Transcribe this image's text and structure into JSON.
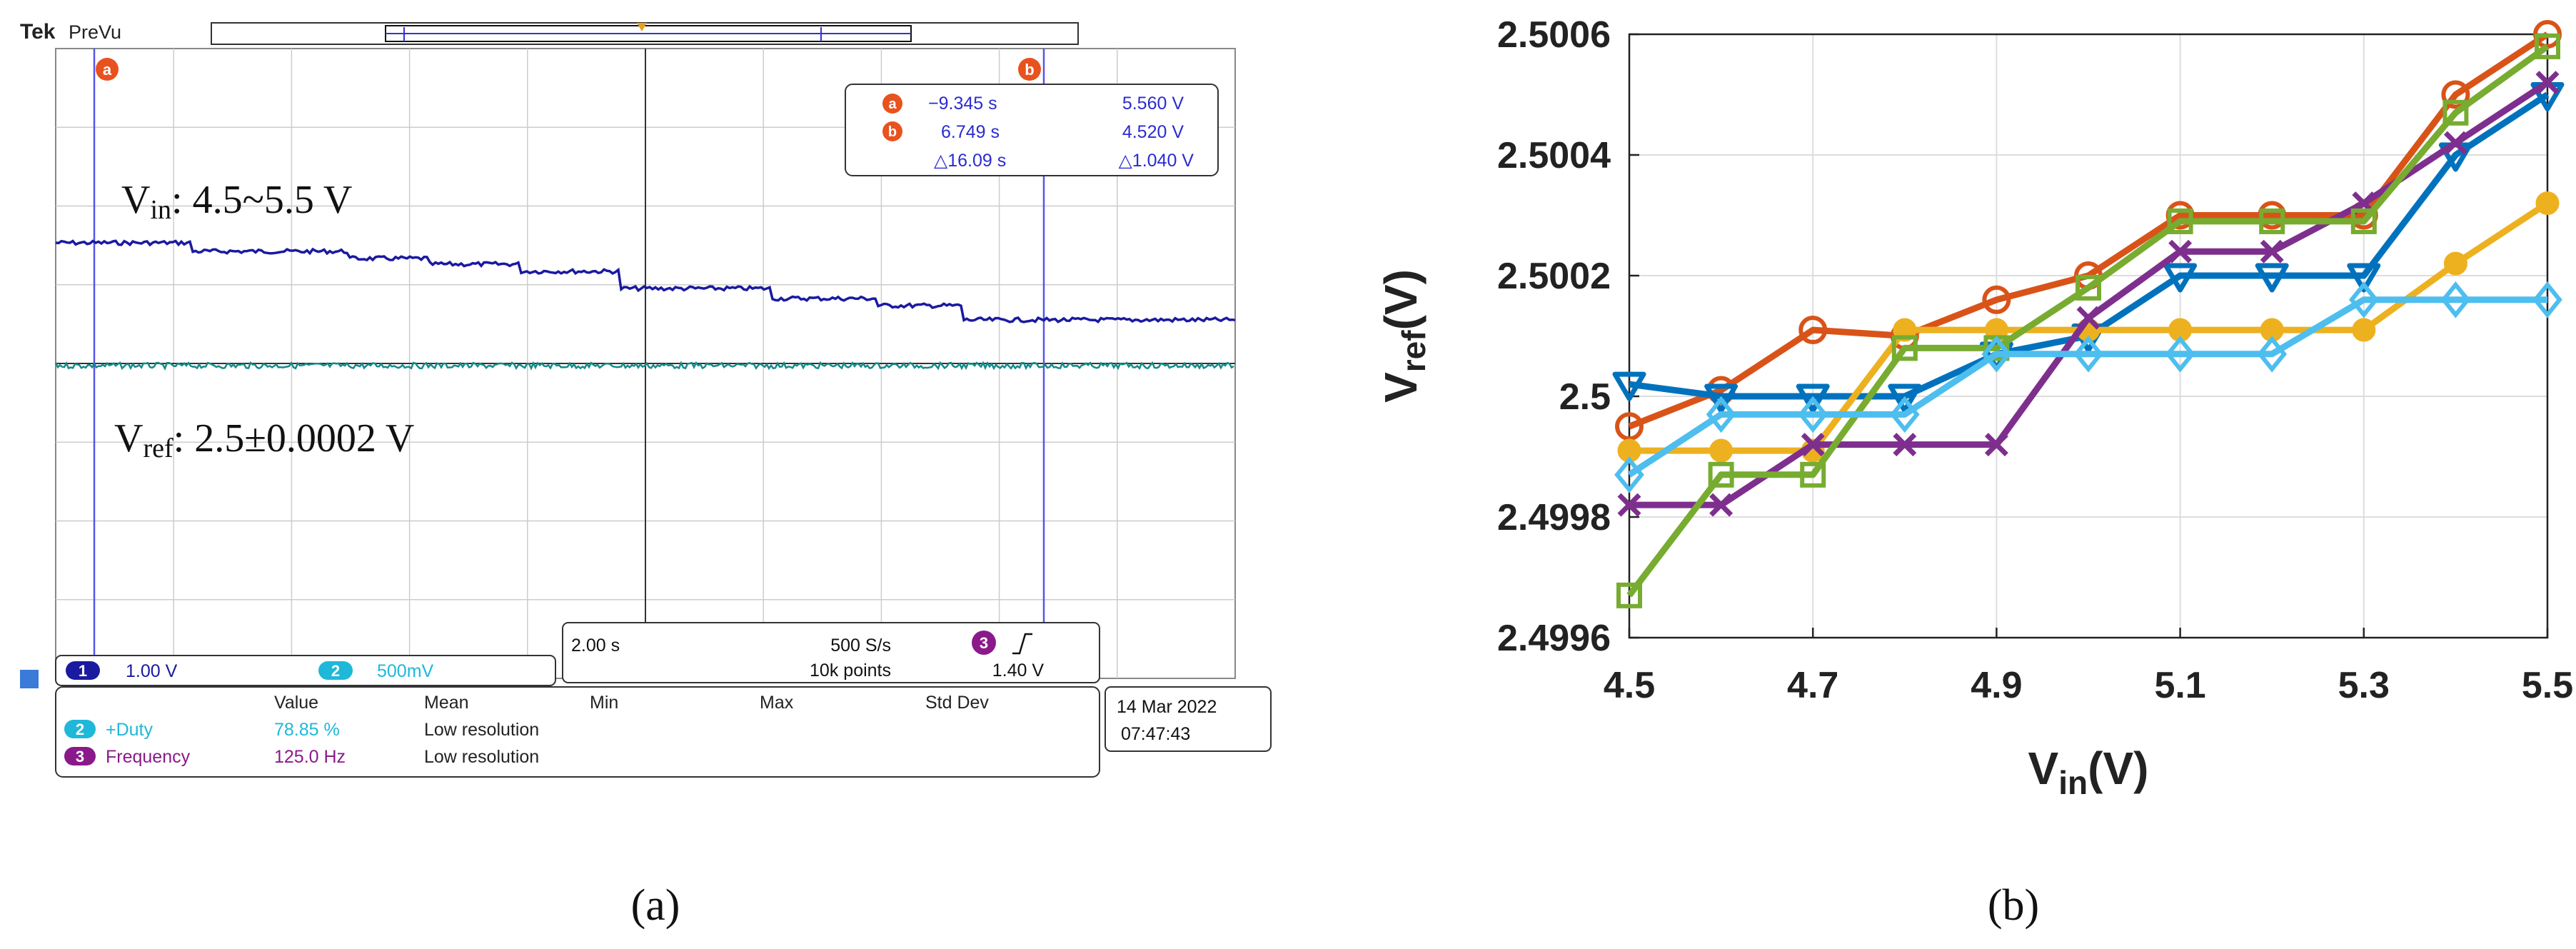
{
  "panel_a": {
    "brand": "Tek",
    "mode": "PreVu",
    "cursor_a_label": "a",
    "cursor_b_label": "b",
    "readout": {
      "a_time": "−9.345 s",
      "a_volt": "5.560 V",
      "b_time": "6.749 s",
      "b_volt": "4.520 V",
      "delta_time": "△16.09 s",
      "delta_volt": "△1.040 V"
    },
    "annotation_vin": {
      "main": "V",
      "sub": "in",
      "rest": ": 4.5~5.5 V"
    },
    "annotation_vref": {
      "main": "V",
      "sub": "ref",
      "rest": ": 2.5±0.0002 V"
    },
    "ch1": {
      "num": "1",
      "scale": "1.00 V"
    },
    "ch2": {
      "num": "2",
      "scale": "500mV"
    },
    "timebase": {
      "div": "2.00 s",
      "rate": "500 S/s",
      "points": "10k points",
      "trig_ch": "3",
      "trig_level": "1.40 V"
    },
    "measure": {
      "headers": [
        "Value",
        "Mean",
        "Min",
        "Max",
        "Std Dev"
      ],
      "rows": [
        {
          "ch": "2",
          "name": "+Duty",
          "value": "78.85 %",
          "note": "Low resolution"
        },
        {
          "ch": "3",
          "name": "Frequency",
          "value": "125.0 Hz",
          "note": "Low resolution"
        }
      ]
    },
    "date": "14 Mar  2022",
    "time": "07:47:43",
    "caption": "(a)",
    "colors": {
      "ch1": "#1a1aa0",
      "ch2": "#158a8a",
      "cursor": "#5555ee",
      "marker": "#e8521f",
      "ch3": "#8a1a8a",
      "ch2_text": "#1fb8d8"
    }
  },
  "panel_b": {
    "caption": "(b)",
    "chart_data": {
      "type": "line",
      "xlabel": {
        "main": "V",
        "sub": "in",
        "unit": "(V)"
      },
      "ylabel": {
        "main": "V",
        "sub": "ref",
        "unit": "(V)"
      },
      "xlim": [
        4.5,
        5.5
      ],
      "ylim": [
        2.4996,
        2.5006
      ],
      "xticks": [
        4.5,
        4.7,
        4.9,
        5.1,
        5.3,
        5.5
      ],
      "xtick_labels": [
        "4.5",
        "4.7",
        "4.9",
        "5.1",
        "5.3",
        "5.5"
      ],
      "yticks": [
        2.4996,
        2.4998,
        2.5,
        2.5002,
        2.5004,
        2.5006
      ],
      "ytick_labels": [
        "2.4996",
        "2.4998",
        "2.5",
        "2.5002",
        "2.5004",
        "2.5006"
      ],
      "grid": true,
      "x": [
        4.5,
        4.6,
        4.7,
        4.8,
        4.9,
        5.0,
        5.1,
        5.2,
        5.3,
        5.4,
        5.5
      ],
      "series": [
        {
          "marker": "circle",
          "color": "#d95319",
          "values": [
            2.49995,
            2.50001,
            2.50011,
            2.5001,
            2.50016,
            2.5002,
            2.5003,
            2.5003,
            2.5003,
            2.5005,
            2.5006
          ]
        },
        {
          "marker": "triangle-down",
          "color": "#0072bd",
          "values": [
            2.50002,
            2.5,
            2.5,
            2.5,
            2.50007,
            2.5001,
            2.5002,
            2.5002,
            2.5002,
            2.5004,
            2.5005
          ]
        },
        {
          "marker": "circle-filled",
          "color": "#edb120",
          "values": [
            2.49991,
            2.49991,
            2.49991,
            2.50011,
            2.50011,
            2.50011,
            2.50011,
            2.50011,
            2.50011,
            2.50022,
            2.50032
          ]
        },
        {
          "marker": "x",
          "color": "#7e2f8e",
          "values": [
            2.49982,
            2.49982,
            2.49992,
            2.49992,
            2.49992,
            2.50013,
            2.50024,
            2.50024,
            2.50032,
            2.50042,
            2.50052
          ]
        },
        {
          "marker": "square",
          "color": "#77ac30",
          "values": [
            2.49967,
            2.49987,
            2.49987,
            2.50008,
            2.50008,
            2.50018,
            2.50029,
            2.50029,
            2.50029,
            2.50047,
            2.50058
          ]
        },
        {
          "marker": "diamond",
          "color": "#4dbeee",
          "values": [
            2.49987,
            2.49997,
            2.49997,
            2.49997,
            2.50007,
            2.50007,
            2.50007,
            2.50007,
            2.50016,
            2.50016,
            2.50016
          ]
        }
      ]
    }
  }
}
